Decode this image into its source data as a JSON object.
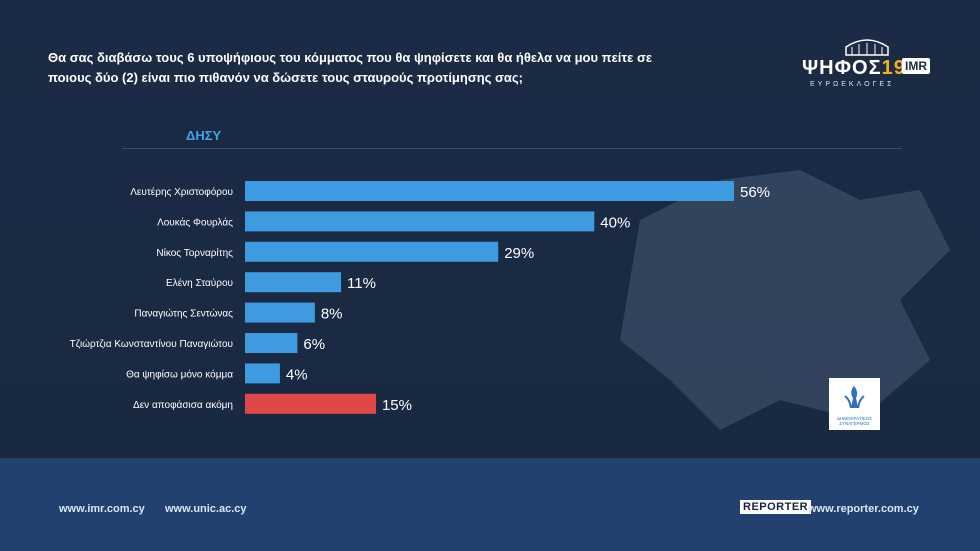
{
  "question": "Θα σας διαβάσω τους 6 υποψήφιους του κόμματος που θα ψηφίσετε και θα ήθελα να μου πείτε σε ποιους δύο (2) είναι πιο πιθανόν να δώσετε τους σταυρούς προτίμησης σας;",
  "logo": {
    "main_text": "ΨΗΦΟΣ",
    "number": "19",
    "imr": "IMR",
    "sub": "ΕΥΡΩΕΚΛΟΓΕΣ"
  },
  "party_logo": {
    "caption_line1": "ΔΗΜΟΚΡΑΤΙΚΟΣ",
    "caption_line2": "ΣΥΝΑΓΕΡΜΟΣ"
  },
  "section_label": "ΔΗΣΥ",
  "colors": {
    "bar": "#3e9be0",
    "bar_highlight": "#e04848",
    "label": "#ffffff",
    "value_label": "#ffffff"
  },
  "chart_data": {
    "type": "bar",
    "orientation": "horizontal",
    "categories": [
      "Λευτέρης Χριστοφόρου",
      "Λουκάς Φουρλάς",
      "Νίκος Τορναρίτης",
      "Ελένη Σταύρου",
      "Παναγιώτης Σεντώνας",
      "Τζιώρτζια Κωνσταντίνου Παναγιώτου",
      "Θα ψηφίσω μόνο κόμμα",
      "Δεν αποφάσισα ακόμη"
    ],
    "values": [
      56,
      40,
      29,
      11,
      8,
      6,
      4,
      15
    ],
    "value_labels": [
      "56%",
      "40%",
      "29%",
      "11%",
      "8%",
      "6%",
      "4%",
      "15%"
    ],
    "highlight_index": 7,
    "xlim": [
      0,
      56
    ],
    "grid": false
  },
  "footer": {
    "link_imr": "www.imr.com.cy",
    "link_unic": "www.unic.ac.cy",
    "reporter_badge": "REPORTER",
    "link_reporter": "www.reporter.com.cy"
  }
}
